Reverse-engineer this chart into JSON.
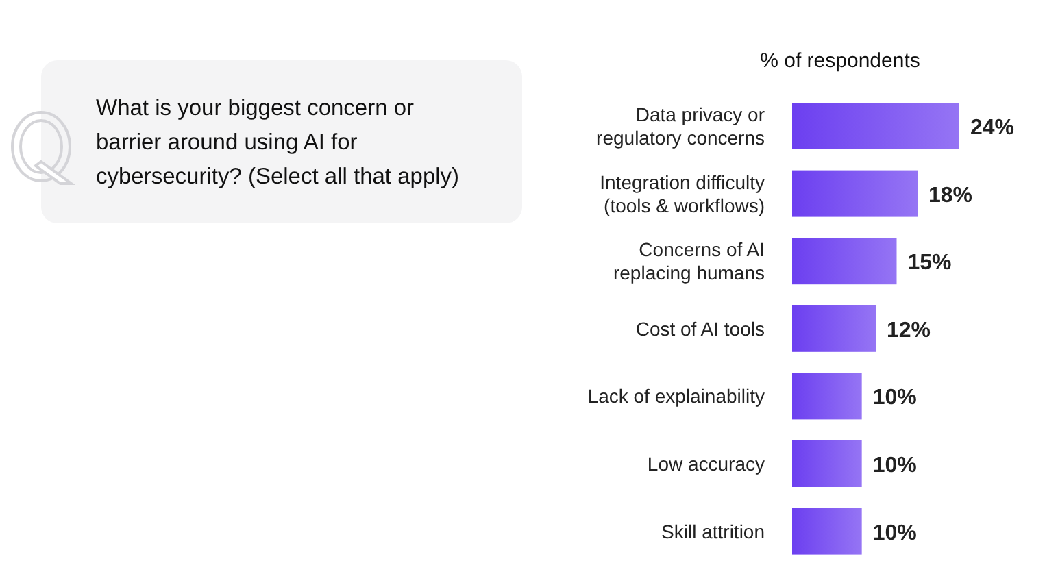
{
  "chart_data": {
    "type": "bar",
    "orientation": "horizontal",
    "relative": false,
    "title": "What is your biggest concern or barrier around using AI for cybersecurity? (Select all that apply)",
    "xlabel": "% of respondents",
    "categories": [
      "Data privacy or regulatory concerns",
      "Integration difficulty (tools & workflows)",
      "Concerns of AI replacing humans",
      "Cost of AI tools",
      "Lack of explainability",
      "Low accuracy",
      "Skill attrition"
    ],
    "values": [
      24,
      18,
      15,
      12,
      10,
      10,
      10
    ],
    "value_labels": [
      "24%",
      "18%",
      "15%",
      "12%",
      "10%",
      "10%",
      "10%"
    ],
    "color": "#6c3ff0"
  }
}
